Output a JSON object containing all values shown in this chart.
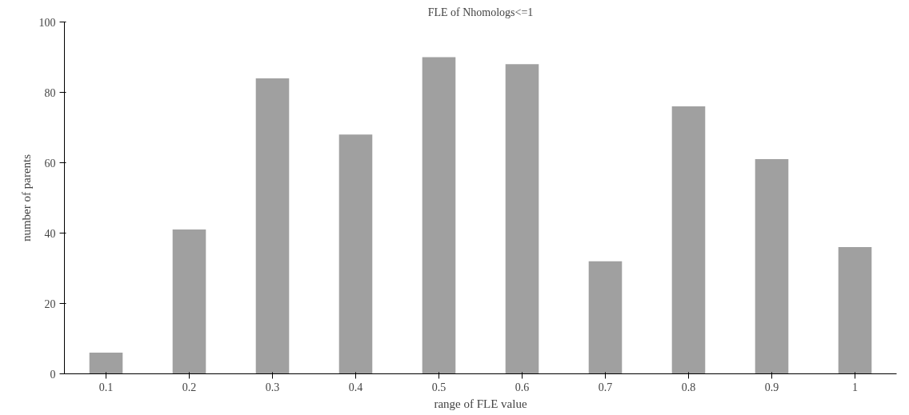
{
  "chart_data": {
    "type": "bar",
    "title": "FLE of Nhomologs<=1",
    "xlabel": "range of FLE value",
    "ylabel": "number of parents",
    "categories": [
      "0.1",
      "0.2",
      "0.3",
      "0.4",
      "0.5",
      "0.6",
      "0.7",
      "0.8",
      "0.9",
      "1"
    ],
    "values": [
      6,
      41,
      84,
      68,
      90,
      88,
      32,
      76,
      61,
      36
    ],
    "color": "#a0a0a0",
    "ylim": [
      0,
      100
    ],
    "yticks": [
      0,
      20,
      40,
      60,
      80,
      100
    ],
    "grid": false
  }
}
